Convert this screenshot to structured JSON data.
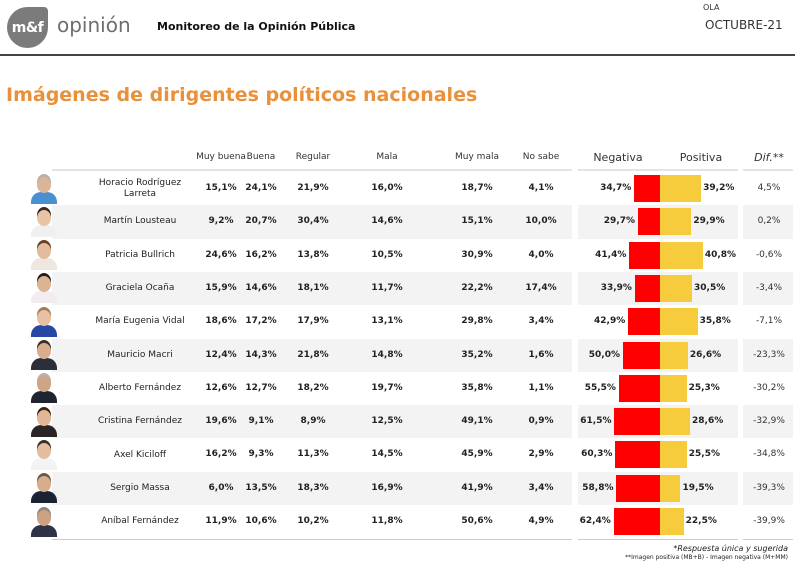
{
  "header": {
    "logo_text": "m&f",
    "logo_word": "opinión",
    "title": "Monitoreo de la Opinión Pública",
    "ola_label": "OLA",
    "ola_value": "OCTUBRE-21"
  },
  "page_title": "Imágenes de dirigentes políticos nacionales",
  "columns": {
    "muy_buena": "Muy buena",
    "buena": "Buena",
    "regular": "Regular",
    "mala": "Mala",
    "muy_mala": "Muy mala",
    "no_sabe": "No sabe",
    "negativa": "Negativa",
    "positiva": "Positiva",
    "dif": "Dif.**"
  },
  "colors": {
    "title_orange": "#E8903A",
    "negative_red": "#FF0000",
    "positive_yellow": "#F7CC3C"
  },
  "chart_data": {
    "type": "table",
    "title": "Imágenes de dirigentes políticos nacionales",
    "columns": [
      "Muy buena",
      "Buena",
      "Regular",
      "Mala",
      "Muy mala",
      "No sabe",
      "Negativa",
      "Positiva",
      "Dif.**"
    ],
    "bar_series": [
      {
        "name": "Negativa",
        "color": "#FF0000",
        "direction": "left"
      },
      {
        "name": "Positiva",
        "color": "#F7CC3C",
        "direction": "right"
      }
    ],
    "rows": [
      {
        "name": "Horacio Rodríguez Larreta",
        "muy_buena": "15,1%",
        "buena": "24,1%",
        "regular": "21,9%",
        "mala": "16,0%",
        "muy_mala": "18,7%",
        "no_sabe": "4,1%",
        "negativa": 34.7,
        "positiva": 39.2,
        "negativa_label": "34,7%",
        "positiva_label": "39,2%",
        "dif": "4,5%"
      },
      {
        "name": "Martín Lousteau",
        "muy_buena": "9,2%",
        "buena": "20,7%",
        "regular": "30,4%",
        "mala": "14,6%",
        "muy_mala": "15,1%",
        "no_sabe": "10,0%",
        "negativa": 29.7,
        "positiva": 29.9,
        "negativa_label": "29,7%",
        "positiva_label": "29,9%",
        "dif": "0,2%"
      },
      {
        "name": "Patricia Bullrich",
        "muy_buena": "24,6%",
        "buena": "16,2%",
        "regular": "13,8%",
        "mala": "10,5%",
        "muy_mala": "30,9%",
        "no_sabe": "4,0%",
        "negativa": 41.4,
        "positiva": 40.8,
        "negativa_label": "41,4%",
        "positiva_label": "40,8%",
        "dif": "-0,6%"
      },
      {
        "name": "Graciela Ocaña",
        "muy_buena": "15,9%",
        "buena": "14,6%",
        "regular": "18,1%",
        "mala": "11,7%",
        "muy_mala": "22,2%",
        "no_sabe": "17,4%",
        "negativa": 33.9,
        "positiva": 30.5,
        "negativa_label": "33,9%",
        "positiva_label": "30,5%",
        "dif": "-3,4%"
      },
      {
        "name": "María Eugenia Vidal",
        "muy_buena": "18,6%",
        "buena": "17,2%",
        "regular": "17,9%",
        "mala": "13,1%",
        "muy_mala": "29,8%",
        "no_sabe": "3,4%",
        "negativa": 42.9,
        "positiva": 35.8,
        "negativa_label": "42,9%",
        "positiva_label": "35,8%",
        "dif": "-7,1%"
      },
      {
        "name": "Mauricio Macri",
        "muy_buena": "12,4%",
        "buena": "14,3%",
        "regular": "21,8%",
        "mala": "14,8%",
        "muy_mala": "35,2%",
        "no_sabe": "1,6%",
        "negativa": 50.0,
        "positiva": 26.6,
        "negativa_label": "50,0%",
        "positiva_label": "26,6%",
        "dif": "-23,3%"
      },
      {
        "name": "Alberto Fernández",
        "muy_buena": "12,6%",
        "buena": "12,7%",
        "regular": "18,2%",
        "mala": "19,7%",
        "muy_mala": "35,8%",
        "no_sabe": "1,1%",
        "negativa": 55.5,
        "positiva": 25.3,
        "negativa_label": "55,5%",
        "positiva_label": "25,3%",
        "dif": "-30,2%"
      },
      {
        "name": "Cristina Fernández",
        "muy_buena": "19,6%",
        "buena": "9,1%",
        "regular": "8,9%",
        "mala": "12,5%",
        "muy_mala": "49,1%",
        "no_sabe": "0,9%",
        "negativa": 61.5,
        "positiva": 28.6,
        "negativa_label": "61,5%",
        "positiva_label": "28,6%",
        "dif": "-32,9%"
      },
      {
        "name": "Axel Kiciloff",
        "muy_buena": "16,2%",
        "buena": "9,3%",
        "regular": "11,3%",
        "mala": "14,5%",
        "muy_mala": "45,9%",
        "no_sabe": "2,9%",
        "negativa": 60.3,
        "positiva": 25.5,
        "negativa_label": "60,3%",
        "positiva_label": "25,5%",
        "dif": "-34,8%"
      },
      {
        "name": "Sergio Massa",
        "muy_buena": "6,0%",
        "buena": "13,5%",
        "regular": "18,3%",
        "mala": "16,9%",
        "muy_mala": "41,9%",
        "no_sabe": "3,4%",
        "negativa": 58.8,
        "positiva": 19.5,
        "negativa_label": "58,8%",
        "positiva_label": "19,5%",
        "dif": "-39,3%"
      },
      {
        "name": "Aníbal Fernández",
        "muy_buena": "11,9%",
        "buena": "10,6%",
        "regular": "10,2%",
        "mala": "11,8%",
        "muy_mala": "50,6%",
        "no_sabe": "4,9%",
        "negativa": 62.4,
        "positiva": 22.5,
        "negativa_label": "62,4%",
        "positiva_label": "22,5%",
        "dif": "-39,9%"
      }
    ]
  },
  "footnotes": {
    "note1": "*Respuesta única y sugerida",
    "note2": "**Imagen positiva (MB+B) - Imagen negativa (M+MM)"
  }
}
